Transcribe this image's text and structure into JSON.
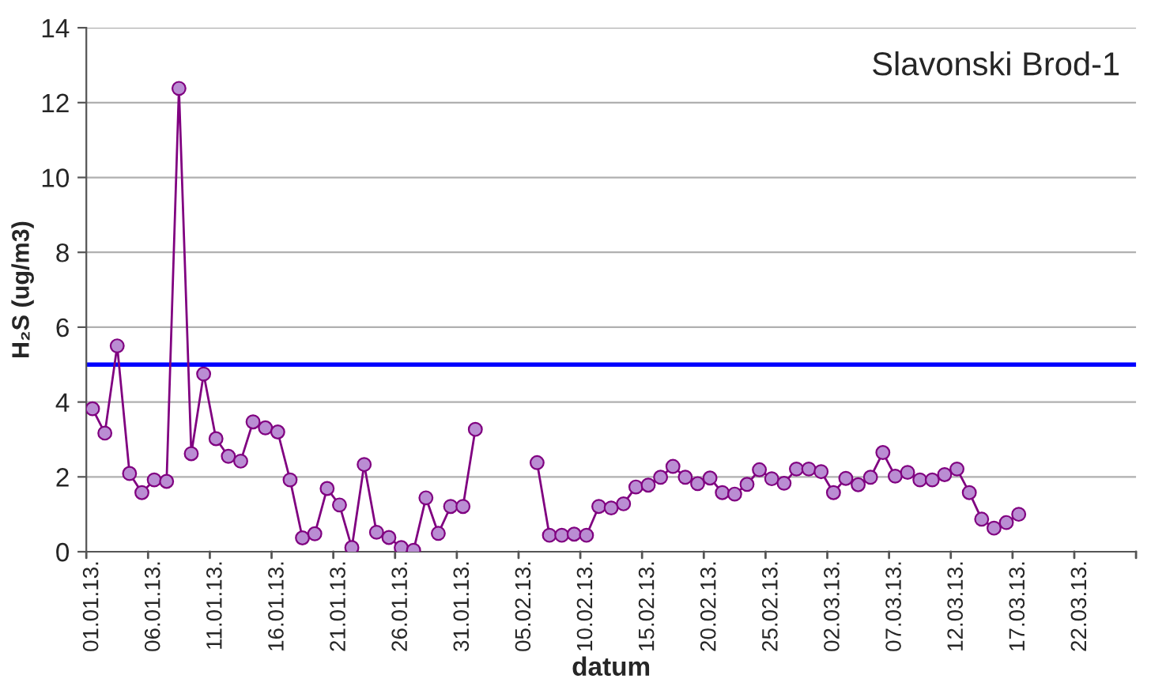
{
  "chart_data": {
    "type": "line",
    "title": "Slavonski Brod-1",
    "xlabel": "datum",
    "ylabel": "H₂S (ug/m3)",
    "categories": [
      "01.01.13.",
      null,
      null,
      null,
      null,
      "06.01.13.",
      null,
      null,
      null,
      null,
      "11.01.13.",
      null,
      null,
      null,
      null,
      "16.01.13.",
      null,
      null,
      null,
      null,
      "21.01.13.",
      null,
      null,
      null,
      null,
      "26.01.13.",
      null,
      null,
      null,
      null,
      "31.01.13.",
      null,
      null,
      null,
      null,
      "05.02.13.",
      null,
      null,
      null,
      null,
      "10.02.13.",
      null,
      null,
      null,
      null,
      "15.02.13.",
      null,
      null,
      null,
      null,
      "20.02.13.",
      null,
      null,
      null,
      null,
      "25.02.13.",
      null,
      null,
      null,
      null,
      "02.03.13.",
      null,
      null,
      null,
      null,
      "07.03.13.",
      null,
      null,
      null,
      null,
      "12.03.13.",
      null,
      null,
      null,
      null,
      "17.03.13.",
      null,
      null,
      null,
      null,
      "22.03.13.",
      null,
      null,
      null,
      null
    ],
    "series": [
      {
        "color": "#800080",
        "values": [
          3.82,
          3.17,
          5.5,
          2.09,
          1.58,
          1.92,
          1.88,
          12.38,
          2.62,
          4.75,
          3.02,
          2.55,
          2.42,
          3.47,
          3.31,
          3.2,
          1.92,
          0.37,
          0.48,
          1.69,
          1.25,
          0.11,
          2.33,
          0.52,
          0.38,
          0.11,
          0.04,
          1.44,
          0.49,
          1.21,
          1.21,
          3.27,
          null,
          null,
          null,
          null,
          2.38,
          0.44,
          0.44,
          0.47,
          0.44,
          1.21,
          1.17,
          1.28,
          1.73,
          1.78,
          1.99,
          2.28,
          1.99,
          1.82,
          1.97,
          1.58,
          1.54,
          1.8,
          2.19,
          1.95,
          1.83,
          2.21,
          2.21,
          2.14,
          1.58,
          1.96,
          1.79,
          1.99,
          2.65,
          2.02,
          2.12,
          1.92,
          1.92,
          2.06,
          2.21,
          1.58,
          0.87,
          0.63,
          0.78,
          1.0,
          null,
          null,
          null,
          null,
          null,
          null,
          null,
          null,
          null
        ]
      }
    ],
    "ref_lines": [
      {
        "axis": "y",
        "value": 5,
        "color": "#0000ff"
      }
    ],
    "ylim": [
      0,
      14
    ],
    "yticks": [
      0,
      2,
      4,
      6,
      8,
      10,
      12,
      14
    ],
    "grid": "y",
    "marker": "circle",
    "line_style": "solid",
    "legend": false
  }
}
